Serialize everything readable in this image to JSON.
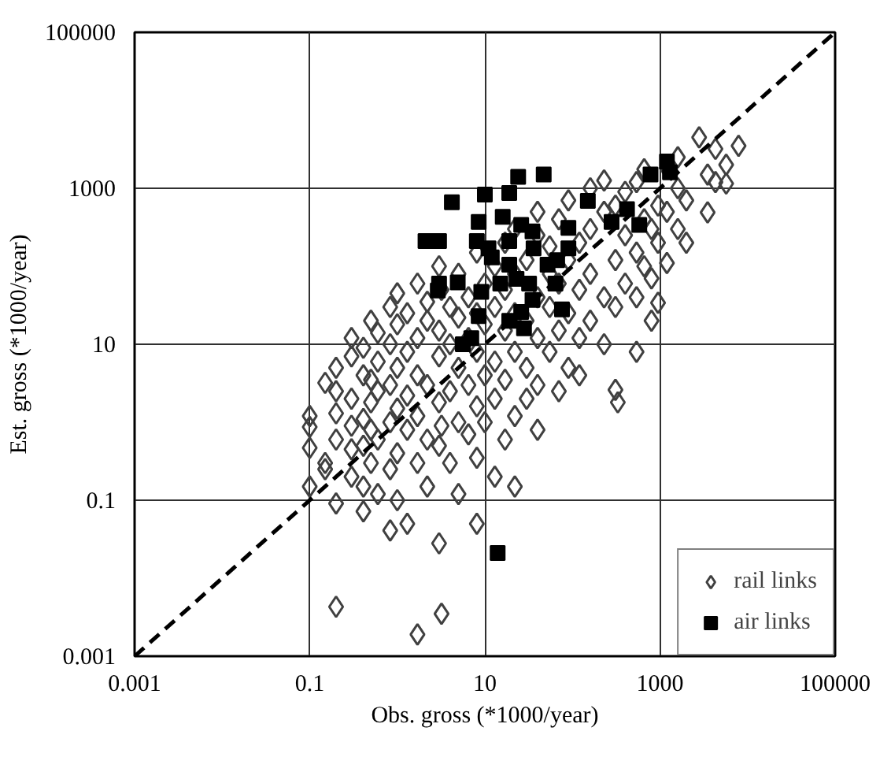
{
  "chart_data": {
    "type": "scatter",
    "xlabel": "Obs. gross (*1000/year)",
    "ylabel": "Est. gross (*1000/year)",
    "log": "xy",
    "xlim": [
      0.001,
      100000
    ],
    "ylim": [
      0.001,
      100000
    ],
    "xticks": [
      0.001,
      0.1,
      10,
      1000,
      100000
    ],
    "yticks": [
      0.001,
      0.1,
      10,
      1000,
      100000
    ],
    "grid": true,
    "legend": "bottom right",
    "series": [
      {
        "name": "rail links",
        "color": "#404040",
        "marker": "diamond",
        "x": [
          0.1,
          0.1,
          0.1,
          0.1,
          0.2,
          0.2,
          0.2,
          0.2,
          0.2,
          0.2,
          0.15,
          0.15,
          0.15,
          0.3,
          0.3,
          0.3,
          0.3,
          0.3,
          0.3,
          0.41,
          0.41,
          0.41,
          0.41,
          0.41,
          0.41,
          0.5,
          0.5,
          0.5,
          0.5,
          0.5,
          0.6,
          0.6,
          0.6,
          0.6,
          0.6,
          0.83,
          0.83,
          0.83,
          0.83,
          0.83,
          0.83,
          1.0,
          1.0,
          1.0,
          1.0,
          1.0,
          1.0,
          1.3,
          1.3,
          1.3,
          1.3,
          1.3,
          1.7,
          1.7,
          1.7,
          1.7,
          1.7,
          1.7,
          2.2,
          2.2,
          2.2,
          2.2,
          2.2,
          3.0,
          3.0,
          3.0,
          3.0,
          3.0,
          3.0,
          3.2,
          3.2,
          3.2,
          4.0,
          4.0,
          4.0,
          4.0,
          5,
          5,
          5,
          5,
          5,
          6.5,
          6.5,
          6.5,
          6.5,
          8.1,
          8.1,
          8.1,
          8.1,
          8.1,
          8.1,
          10,
          10,
          10,
          10,
          13,
          13,
          13,
          13,
          13,
          17,
          17,
          17,
          17,
          17,
          22,
          22,
          22,
          22,
          22,
          22,
          30,
          30,
          30,
          30,
          40,
          40,
          40,
          40,
          40,
          40,
          55,
          55,
          55,
          55,
          70,
          70,
          70,
          70,
          90,
          90,
          90,
          90,
          120,
          120,
          120,
          120,
          160,
          160,
          160,
          160,
          230,
          230,
          230,
          230,
          310,
          310,
          310,
          310,
          330,
          400,
          400,
          400,
          540,
          540,
          540,
          540,
          660,
          660,
          660,
          800,
          800,
          800,
          950,
          950,
          950,
          1200,
          1200,
          1200,
          1600,
          1600,
          1600,
          2000,
          2000,
          2800,
          3500,
          3500,
          4300,
          4300,
          5700,
          5700,
          7900
        ],
        "values": [
          1.2,
          0.87,
          0.47,
          0.15,
          0.0043,
          0.091,
          0.6,
          2.5,
          5.0,
          1.3,
          0.3,
          3.2,
          0.25,
          0.2,
          0.9,
          2.0,
          7,
          12,
          0.45,
          0.072,
          0.15,
          0.5,
          1.1,
          4,
          9,
          0.3,
          1.8,
          3.5,
          20,
          0.8,
          0.12,
          0.6,
          2.5,
          6,
          14,
          0.041,
          0.25,
          1.0,
          3,
          30,
          10,
          0.4,
          1.5,
          5,
          18,
          45,
          0.1,
          0.05,
          0.8,
          2.2,
          8,
          25,
          0.0019,
          0.3,
          1.2,
          4,
          12,
          60,
          0.15,
          0.6,
          3,
          20,
          35,
          0.028,
          0.5,
          1.8,
          7,
          15,
          100,
          0.0035,
          0.9,
          50,
          0.3,
          2.5,
          10,
          30,
          0.12,
          1,
          5,
          22,
          80,
          0.7,
          3,
          12,
          40,
          0.05,
          0.35,
          1.6,
          8,
          25,
          150,
          1,
          4,
          18,
          60,
          0.2,
          2,
          6,
          30,
          100,
          0.6,
          3.5,
          15,
          50,
          200,
          0.15,
          1.2,
          8,
          25,
          80,
          300,
          2,
          5,
          20,
          120,
          0.8,
          3,
          12,
          40,
          250,
          500,
          8,
          30,
          80,
          180,
          2.5,
          15,
          60,
          400,
          5,
          25,
          120,
          700,
          4,
          12,
          50,
          200,
          20,
          80,
          300,
          1000,
          10,
          40,
          1260,
          500,
          2.6,
          30,
          120,
          600,
          1.8,
          60,
          250,
          900,
          8,
          40,
          150,
          1200,
          1750,
          100,
          400,
          20,
          70,
          300,
          34,
          200,
          600,
          110,
          500,
          1800,
          300,
          1000,
          2500,
          200,
          700,
          4500,
          490,
          1500,
          3200,
          1200,
          1150,
          2000,
          3500
        ]
      },
      {
        "name": "air links",
        "color": "#000000",
        "marker": "square",
        "x": [
          24,
          47,
          10,
          19,
          4.2,
          16,
          8.5,
          2.1,
          3.0,
          26,
          35,
          8.1,
          11,
          19,
          36,
          90,
          150,
          280,
          420,
          580,
          780,
          90,
          67,
          52,
          3.0,
          4.9,
          2.9,
          9.1,
          15,
          23,
          32,
          35,
          76,
          19,
          28,
          7.0,
          26,
          14,
          1200,
          1300,
          5.6,
          8.5,
          12,
          19,
          64
        ],
        "values": [
          1400,
          1500,
          830,
          870,
          660,
          430,
          370,
          210,
          210,
          340,
          280,
          210,
          170,
          210,
          170,
          310,
          690,
          370,
          540,
          340,
          1500,
          170,
          120,
          105,
          60,
          62,
          49,
          47,
          60,
          69,
          60,
          37,
          28,
          20,
          16,
          12,
          26,
          0.021,
          2200,
          1600,
          10,
          23,
          130,
          105,
          60
        ]
      },
      {
        "type": "line",
        "color": "#000000",
        "line_style": "dashed",
        "x": [
          0.001,
          100000
        ],
        "values": [
          0.001,
          100000
        ]
      }
    ]
  }
}
